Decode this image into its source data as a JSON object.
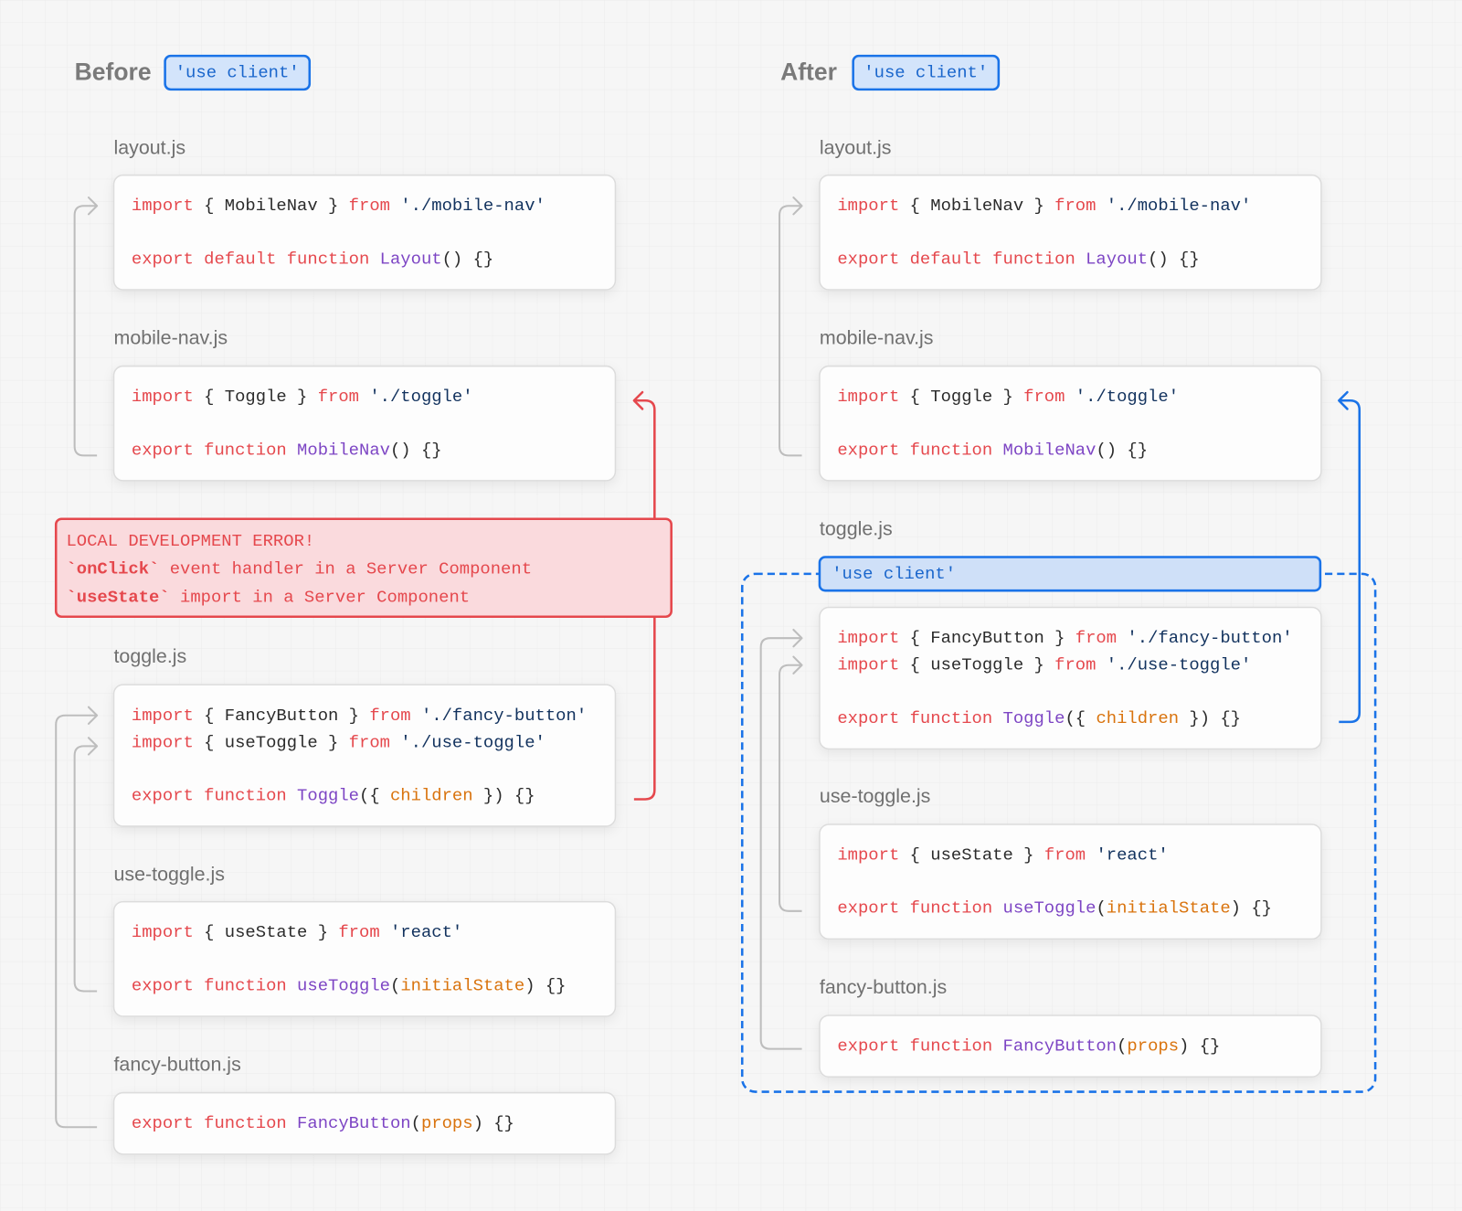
{
  "before": {
    "title": "Before",
    "badge": "'use client'",
    "files": [
      {
        "name": "layout.js",
        "blocks": [
          [
            [
              {
                "text": "import",
                "color": "#e5484d"
              },
              {
                "text": " { MobileNav } ",
                "color": "#2b2b2b"
              },
              {
                "text": "from",
                "color": "#e5484d"
              },
              {
                "text": " './mobile-nav'",
                "color": "#12325e"
              }
            ]
          ],
          [
            [
              {
                "text": "export default function",
                "color": "#e5484d"
              },
              {
                "text": " Layout",
                "color": "#7d45c4"
              },
              {
                "text": "() {}",
                "color": "#2b2b2b"
              }
            ]
          ]
        ]
      },
      {
        "name": "mobile-nav.js",
        "blocks": [
          [
            [
              {
                "text": "import",
                "color": "#e5484d"
              },
              {
                "text": " { Toggle } ",
                "color": "#2b2b2b"
              },
              {
                "text": "from",
                "color": "#e5484d"
              },
              {
                "text": " './toggle'",
                "color": "#12325e"
              }
            ]
          ],
          [
            [
              {
                "text": "export function",
                "color": "#e5484d"
              },
              {
                "text": " MobileNav",
                "color": "#7d45c4"
              },
              {
                "text": "() {}",
                "color": "#2b2b2b"
              }
            ]
          ]
        ]
      },
      {
        "name": "toggle.js",
        "blocks": [
          [
            [
              {
                "text": "import",
                "color": "#e5484d"
              },
              {
                "text": " { FancyButton } ",
                "color": "#2b2b2b"
              },
              {
                "text": "from",
                "color": "#e5484d"
              },
              {
                "text": " './fancy-button'",
                "color": "#12325e"
              }
            ],
            [
              {
                "text": "import",
                "color": "#e5484d"
              },
              {
                "text": " { useToggle } ",
                "color": "#2b2b2b"
              },
              {
                "text": "from",
                "color": "#e5484d"
              },
              {
                "text": " './use-toggle'",
                "color": "#12325e"
              }
            ]
          ],
          [
            [
              {
                "text": "export function",
                "color": "#e5484d"
              },
              {
                "text": " Toggle",
                "color": "#7d45c4"
              },
              {
                "text": "({ ",
                "color": "#2b2b2b"
              },
              {
                "text": "children",
                "color": "#d9730d"
              },
              {
                "text": " }) {}",
                "color": "#2b2b2b"
              }
            ]
          ]
        ]
      },
      {
        "name": "use-toggle.js",
        "blocks": [
          [
            [
              {
                "text": "import",
                "color": "#e5484d"
              },
              {
                "text": " { useState } ",
                "color": "#2b2b2b"
              },
              {
                "text": "from",
                "color": "#e5484d"
              },
              {
                "text": " 'react'",
                "color": "#12325e"
              }
            ]
          ],
          [
            [
              {
                "text": "export function",
                "color": "#e5484d"
              },
              {
                "text": " useToggle",
                "color": "#7d45c4"
              },
              {
                "text": "(",
                "color": "#2b2b2b"
              },
              {
                "text": "initialState",
                "color": "#d9730d"
              },
              {
                "text": ") {}",
                "color": "#2b2b2b"
              }
            ]
          ]
        ]
      },
      {
        "name": "fancy-button.js",
        "blocks": [
          [
            [
              {
                "text": "export function",
                "color": "#e5484d"
              },
              {
                "text": " FancyButton",
                "color": "#7d45c4"
              },
              {
                "text": "(",
                "color": "#2b2b2b"
              },
              {
                "text": "props",
                "color": "#d9730d"
              },
              {
                "text": ") {}",
                "color": "#2b2b2b"
              }
            ]
          ]
        ]
      }
    ],
    "error": {
      "color": "#e5484d",
      "lines": [
        [
          {
            "text": "LOCAL DEVELOPMENT ERROR!"
          }
        ],
        [
          {
            "text": "`onClick`",
            "bold": true
          },
          {
            "text": " event handler in a Server Component"
          }
        ],
        [
          {
            "text": "`useState`",
            "bold": true
          },
          {
            "text": " import in a Server Component"
          }
        ]
      ]
    }
  },
  "after": {
    "title": "After",
    "badge": "'use client'",
    "client_label": "'use client'",
    "files": [
      {
        "name": "layout.js",
        "blocks": [
          [
            [
              {
                "text": "import",
                "color": "#e5484d"
              },
              {
                "text": " { MobileNav } ",
                "color": "#2b2b2b"
              },
              {
                "text": "from",
                "color": "#e5484d"
              },
              {
                "text": " './mobile-nav'",
                "color": "#12325e"
              }
            ]
          ],
          [
            [
              {
                "text": "export default function",
                "color": "#e5484d"
              },
              {
                "text": " Layout",
                "color": "#7d45c4"
              },
              {
                "text": "() {}",
                "color": "#2b2b2b"
              }
            ]
          ]
        ]
      },
      {
        "name": "mobile-nav.js",
        "blocks": [
          [
            [
              {
                "text": "import",
                "color": "#e5484d"
              },
              {
                "text": " { Toggle } ",
                "color": "#2b2b2b"
              },
              {
                "text": "from",
                "color": "#e5484d"
              },
              {
                "text": " './toggle'",
                "color": "#12325e"
              }
            ]
          ],
          [
            [
              {
                "text": "export function",
                "color": "#e5484d"
              },
              {
                "text": " MobileNav",
                "color": "#7d45c4"
              },
              {
                "text": "() {}",
                "color": "#2b2b2b"
              }
            ]
          ]
        ]
      },
      {
        "name": "toggle.js",
        "blocks": [
          [
            [
              {
                "text": "import",
                "color": "#e5484d"
              },
              {
                "text": " { FancyButton } ",
                "color": "#2b2b2b"
              },
              {
                "text": "from",
                "color": "#e5484d"
              },
              {
                "text": " './fancy-button'",
                "color": "#12325e"
              }
            ],
            [
              {
                "text": "import",
                "color": "#e5484d"
              },
              {
                "text": " { useToggle } ",
                "color": "#2b2b2b"
              },
              {
                "text": "from",
                "color": "#e5484d"
              },
              {
                "text": " './use-toggle'",
                "color": "#12325e"
              }
            ]
          ],
          [
            [
              {
                "text": "export function",
                "color": "#e5484d"
              },
              {
                "text": " Toggle",
                "color": "#7d45c4"
              },
              {
                "text": "({ ",
                "color": "#2b2b2b"
              },
              {
                "text": "children",
                "color": "#d9730d"
              },
              {
                "text": " }) {}",
                "color": "#2b2b2b"
              }
            ]
          ]
        ]
      },
      {
        "name": "use-toggle.js",
        "blocks": [
          [
            [
              {
                "text": "import",
                "color": "#e5484d"
              },
              {
                "text": " { useState } ",
                "color": "#2b2b2b"
              },
              {
                "text": "from",
                "color": "#e5484d"
              },
              {
                "text": " 'react'",
                "color": "#12325e"
              }
            ]
          ],
          [
            [
              {
                "text": "export function",
                "color": "#e5484d"
              },
              {
                "text": " useToggle",
                "color": "#7d45c4"
              },
              {
                "text": "(",
                "color": "#2b2b2b"
              },
              {
                "text": "initialState",
                "color": "#d9730d"
              },
              {
                "text": ") {}",
                "color": "#2b2b2b"
              }
            ]
          ]
        ]
      },
      {
        "name": "fancy-button.js",
        "blocks": [
          [
            [
              {
                "text": "export function",
                "color": "#e5484d"
              },
              {
                "text": " FancyButton",
                "color": "#7d45c4"
              },
              {
                "text": "(",
                "color": "#2b2b2b"
              },
              {
                "text": "props",
                "color": "#d9730d"
              },
              {
                "text": ") {}",
                "color": "#2b2b2b"
              }
            ]
          ]
        ]
      }
    ]
  }
}
